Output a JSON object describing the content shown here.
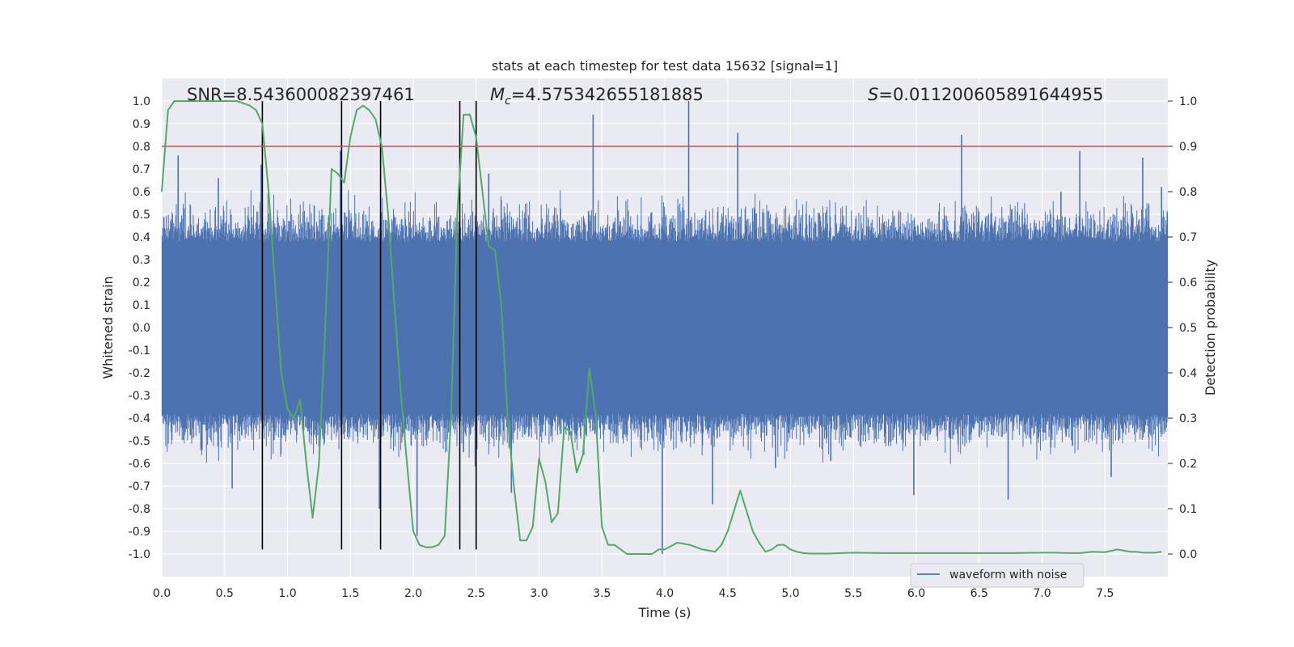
{
  "chart_data": {
    "type": "line",
    "title": "stats at each timestep for test data 15632 [signal=1]",
    "xlabel": "Time (s)",
    "ylabel_left": "Whitened strain",
    "ylabel_right": "Detection probability",
    "xlim": [
      0,
      8
    ],
    "ylim_left": [
      -1.1,
      1.1
    ],
    "ylim_right": [
      -0.05,
      1.05
    ],
    "x_ticks": [
      "0.0",
      "0.5",
      "1.0",
      "1.5",
      "2.0",
      "2.5",
      "3.0",
      "3.5",
      "4.0",
      "4.5",
      "5.0",
      "5.5",
      "6.0",
      "6.5",
      "7.0",
      "7.5"
    ],
    "y_ticks_left": [
      "1.0",
      "0.9",
      "0.8",
      "0.7",
      "0.6",
      "0.5",
      "0.4",
      "0.3",
      "0.2",
      "0.1",
      "0.0",
      "-0.1",
      "-0.2",
      "-0.3",
      "-0.4",
      "-0.5",
      "-0.6",
      "-0.7",
      "-0.8",
      "-0.9",
      "-1.0"
    ],
    "y_ticks_right": [
      "1.0",
      "0.9",
      "0.8",
      "0.7",
      "0.6",
      "0.5",
      "0.4",
      "0.3",
      "0.2",
      "0.1",
      "0.0"
    ],
    "annotations": {
      "snr": "SNR=8.543600082397461",
      "mc_symbol": "M",
      "mc_sub": "c",
      "mc_value": "=4.575342655181885",
      "s_symbol": "S",
      "s_value": "=0.011200605891644955"
    },
    "legend": {
      "label": "waveform with noise",
      "position": "lower-right"
    },
    "threshold": {
      "value": 0.9,
      "axis": "right",
      "color": "#c44e52"
    },
    "vertical_lines": [
      0.8,
      1.43,
      1.74,
      2.37,
      2.5
    ],
    "vertical_line_range": [
      -0.98,
      1.0
    ],
    "waveform": {
      "name": "waveform with noise",
      "color": "#4c72b0",
      "core_amplitude": 0.38,
      "spikes": [
        {
          "t": 0.13,
          "v": 0.76
        },
        {
          "t": 0.45,
          "v": 0.66
        },
        {
          "t": 0.56,
          "v": -0.71
        },
        {
          "t": 0.79,
          "v": 0.72
        },
        {
          "t": 1.42,
          "v": 0.78
        },
        {
          "t": 1.73,
          "v": -0.8
        },
        {
          "t": 2.03,
          "v": -0.92
        },
        {
          "t": 2.4,
          "v": -0.55
        },
        {
          "t": 2.6,
          "v": 0.68
        },
        {
          "t": 2.78,
          "v": -0.73
        },
        {
          "t": 3.43,
          "v": 0.94
        },
        {
          "t": 3.98,
          "v": -1.0
        },
        {
          "t": 4.19,
          "v": 1.0
        },
        {
          "t": 4.38,
          "v": -0.78
        },
        {
          "t": 4.58,
          "v": 0.86
        },
        {
          "t": 4.88,
          "v": -0.62
        },
        {
          "t": 5.32,
          "v": -0.59
        },
        {
          "t": 5.98,
          "v": -0.74
        },
        {
          "t": 6.36,
          "v": 0.85
        },
        {
          "t": 6.73,
          "v": -0.76
        },
        {
          "t": 7.15,
          "v": 0.6
        },
        {
          "t": 7.3,
          "v": 0.78
        },
        {
          "t": 7.55,
          "v": -0.66
        },
        {
          "t": 7.8,
          "v": 0.75
        },
        {
          "t": 7.95,
          "v": 0.62
        }
      ]
    },
    "probability_series": {
      "name": "detection probability",
      "color": "#55a868",
      "x": [
        0.0,
        0.05,
        0.1,
        0.2,
        0.3,
        0.4,
        0.5,
        0.6,
        0.7,
        0.75,
        0.8,
        0.85,
        0.9,
        0.95,
        1.0,
        1.05,
        1.1,
        1.15,
        1.2,
        1.25,
        1.3,
        1.35,
        1.4,
        1.45,
        1.5,
        1.55,
        1.6,
        1.65,
        1.7,
        1.75,
        1.8,
        1.85,
        1.9,
        1.95,
        2.0,
        2.05,
        2.1,
        2.15,
        2.2,
        2.25,
        2.3,
        2.35,
        2.4,
        2.45,
        2.5,
        2.55,
        2.6,
        2.65,
        2.7,
        2.75,
        2.8,
        2.85,
        2.9,
        2.95,
        3.0,
        3.05,
        3.1,
        3.15,
        3.2,
        3.25,
        3.3,
        3.35,
        3.4,
        3.45,
        3.5,
        3.55,
        3.6,
        3.65,
        3.7,
        3.75,
        3.8,
        3.85,
        3.9,
        3.95,
        4.0,
        4.1,
        4.2,
        4.3,
        4.4,
        4.45,
        4.5,
        4.6,
        4.7,
        4.75,
        4.8,
        4.85,
        4.9,
        4.95,
        5.0,
        5.05,
        5.1,
        5.15,
        5.2,
        5.3,
        5.5,
        5.7,
        5.8,
        6.0,
        6.2,
        6.4,
        6.6,
        6.8,
        7.0,
        7.1,
        7.2,
        7.3,
        7.4,
        7.5,
        7.6,
        7.7,
        7.75,
        7.8,
        7.9,
        7.95
      ],
      "y": [
        0.8,
        0.98,
        1.0,
        1.0,
        1.0,
        1.0,
        1.0,
        1.0,
        0.99,
        0.98,
        0.95,
        0.8,
        0.6,
        0.4,
        0.32,
        0.3,
        0.34,
        0.2,
        0.08,
        0.2,
        0.5,
        0.85,
        0.84,
        0.82,
        0.92,
        0.98,
        0.99,
        0.98,
        0.96,
        0.9,
        0.75,
        0.55,
        0.36,
        0.2,
        0.05,
        0.02,
        0.015,
        0.015,
        0.02,
        0.04,
        0.3,
        0.75,
        0.97,
        0.97,
        0.92,
        0.8,
        0.68,
        0.67,
        0.55,
        0.3,
        0.15,
        0.03,
        0.03,
        0.06,
        0.21,
        0.16,
        0.07,
        0.09,
        0.28,
        0.27,
        0.18,
        0.22,
        0.41,
        0.31,
        0.06,
        0.02,
        0.02,
        0.01,
        0.0,
        0.0,
        0.0,
        0.0,
        0.0,
        0.01,
        0.01,
        0.025,
        0.02,
        0.01,
        0.005,
        0.02,
        0.05,
        0.14,
        0.05,
        0.025,
        0.005,
        0.01,
        0.02,
        0.02,
        0.01,
        0.005,
        0.002,
        0.001,
        0.001,
        0.001,
        0.003,
        0.002,
        0.002,
        0.002,
        0.002,
        0.002,
        0.002,
        0.002,
        0.003,
        0.003,
        0.002,
        0.002,
        0.005,
        0.004,
        0.01,
        0.005,
        0.005,
        0.003,
        0.003,
        0.005
      ]
    }
  }
}
